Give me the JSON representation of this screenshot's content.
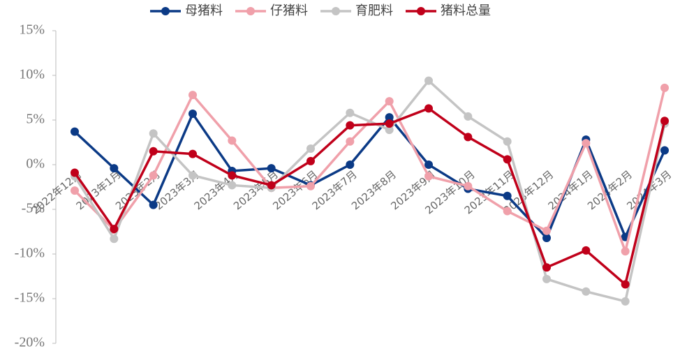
{
  "chart_data": {
    "type": "line",
    "categories": [
      "2022年12月",
      "2023年1月",
      "2023年2月",
      "2023年3月",
      "2023年4月",
      "2023年5月",
      "2023年6月",
      "2023年7月",
      "2023年8月",
      "2023年9月",
      "2023年10月",
      "2023年11月",
      "2023年12月",
      "2024年1月",
      "2024年2月",
      "2024年3月"
    ],
    "series": [
      {
        "name": "母猪料",
        "color": "#0b3a86",
        "values": [
          3.7,
          -0.4,
          -4.5,
          5.7,
          -0.7,
          -0.4,
          -2.3,
          0.0,
          5.3,
          0.0,
          -2.7,
          -3.5,
          -8.2,
          2.8,
          -8.1,
          1.6
        ]
      },
      {
        "name": "仔猪料",
        "color": "#f0a0aa",
        "values": [
          -2.9,
          -7.3,
          -1.2,
          7.8,
          2.7,
          -2.6,
          -2.4,
          2.6,
          7.1,
          -1.3,
          -2.4,
          -5.2,
          -7.4,
          2.4,
          -9.7,
          8.6
        ]
      },
      {
        "name": "育肥料",
        "color": "#c4c4c4",
        "values": [
          -1.3,
          -8.3,
          3.5,
          -1.2,
          -2.3,
          -2.6,
          1.8,
          5.8,
          3.9,
          9.4,
          5.4,
          2.6,
          -12.8,
          -14.2,
          -15.3,
          4.6
        ]
      },
      {
        "name": "猪料总量",
        "color": "#c0001a",
        "values": [
          -0.9,
          -7.2,
          1.5,
          1.2,
          -1.2,
          -2.3,
          0.4,
          4.4,
          4.6,
          6.3,
          3.1,
          0.6,
          -11.5,
          -9.6,
          -13.4,
          4.9
        ]
      }
    ],
    "ylim": [
      -20,
      15
    ],
    "yticks": [
      {
        "value": -20,
        "label": "-20%"
      },
      {
        "value": -15,
        "label": "-15%"
      },
      {
        "value": -10,
        "label": "-10%"
      },
      {
        "value": -5,
        "label": "-5%"
      },
      {
        "value": 0,
        "label": "0%"
      },
      {
        "value": 5,
        "label": "5%"
      },
      {
        "value": 10,
        "label": "10%"
      },
      {
        "value": 15,
        "label": "15%"
      }
    ],
    "legend": "top",
    "grid": false
  }
}
